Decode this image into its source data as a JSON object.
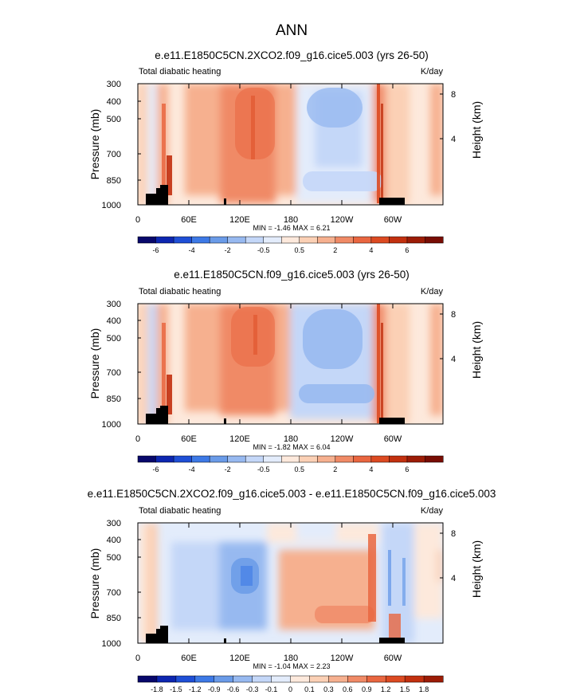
{
  "page_title": "ANN",
  "palettes": {
    "full": [
      "#08086b",
      "#0d26b0",
      "#1f4fd6",
      "#3d79e6",
      "#6a9be8",
      "#97b9f0",
      "#c4d7f8",
      "#e3ecfb",
      "#fde9dc",
      "#fbd0b5",
      "#f6b08f",
      "#f08a66",
      "#e96640",
      "#dc4a22",
      "#c2300f",
      "#9c1c06",
      "#780d04"
    ],
    "diff": [
      "#08086b",
      "#0d26b0",
      "#1f4fd6",
      "#3d79e6",
      "#6a9be8",
      "#97b9f0",
      "#c4d7f8",
      "#e3ecfb",
      "#fde9dc",
      "#fbd0b5",
      "#f6b08f",
      "#f08a66",
      "#e96640",
      "#dc4a22",
      "#c2300f",
      "#9c1c06"
    ]
  },
  "chart_data": [
    {
      "type": "heatmap",
      "title": "e.e11.E1850C5CN.2XCO2.f09_g16.cice5.003 (yrs 26-50)",
      "left_label": "Total diabatic heating",
      "right_label": "K/day",
      "ylabel": "Pressure (mb)",
      "ylabel_right": "Height (km)",
      "yticks": [
        "300",
        "400",
        "500",
        "700",
        "850",
        "1000"
      ],
      "yticks_right": [
        "8",
        "4"
      ],
      "xticks": [
        "0",
        "60E",
        "120E",
        "180",
        "120W",
        "60W"
      ],
      "stats": "MIN = -1.46  MAX =  6.21",
      "colorbar_labels": [
        "-6",
        "-4",
        "-2",
        "-0.5",
        "0.5",
        "2",
        "4",
        "6"
      ],
      "palette": "full"
    },
    {
      "type": "heatmap",
      "title": "e.e11.E1850C5CN.f09_g16.cice5.003 (yrs 26-50)",
      "left_label": "Total diabatic heating",
      "right_label": "K/day",
      "ylabel": "Pressure (mb)",
      "ylabel_right": "Height (km)",
      "yticks": [
        "300",
        "400",
        "500",
        "700",
        "850",
        "1000"
      ],
      "yticks_right": [
        "8",
        "4"
      ],
      "xticks": [
        "0",
        "60E",
        "120E",
        "180",
        "120W",
        "60W"
      ],
      "stats": "MIN = -1.82  MAX =  6.04",
      "colorbar_labels": [
        "-6",
        "-4",
        "-2",
        "-0.5",
        "0.5",
        "2",
        "4",
        "6"
      ],
      "palette": "full"
    },
    {
      "type": "heatmap",
      "title": "e.e11.E1850C5CN.2XCO2.f09_g16.cice5.003 - e.e11.E1850C5CN.f09_g16.cice5.003",
      "left_label": "Total diabatic heating",
      "right_label": "K/day",
      "ylabel": "Pressure (mb)",
      "ylabel_right": "Height (km)",
      "yticks": [
        "300",
        "400",
        "500",
        "700",
        "850",
        "1000"
      ],
      "yticks_right": [
        "8",
        "4"
      ],
      "xticks": [
        "0",
        "60E",
        "120E",
        "180",
        "120W",
        "60W"
      ],
      "stats": "MIN = -1.04  MAX =  2.23",
      "colorbar_labels": [
        "-1.8",
        "-1.5",
        "-1.2",
        "-0.9",
        "-0.6",
        "-0.3",
        "-0.1",
        "0",
        "0.1",
        "0.3",
        "0.6",
        "0.9",
        "1.2",
        "1.5",
        "1.8"
      ],
      "palette": "diff"
    }
  ]
}
